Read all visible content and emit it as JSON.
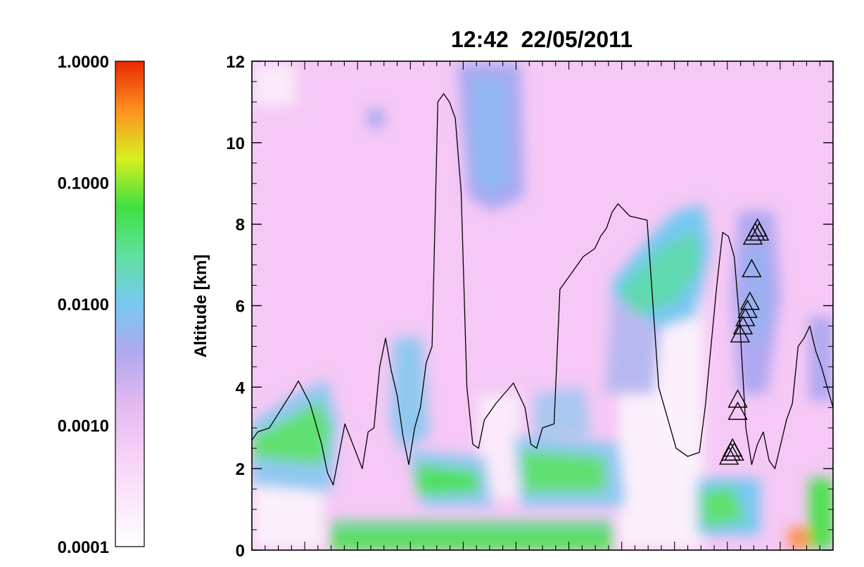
{
  "chart_data": {
    "type": "heatmap",
    "title": "12:42  22/05/2011",
    "ylabel": "Altitude [km]",
    "xlabel": "",
    "ylim": [
      0,
      12
    ],
    "yticks": [
      0,
      2,
      4,
      6,
      8,
      10,
      12
    ],
    "y_tick_labels": [
      "0",
      "2",
      "4",
      "6",
      "8",
      "10",
      "12"
    ],
    "x_tick_count": 44,
    "colorbar": {
      "scale": "log",
      "range": [
        0.0001,
        1.0
      ],
      "ticks": [
        0.0001,
        0.001,
        0.01,
        0.1,
        1.0
      ],
      "tick_labels": [
        "0.0001",
        "0.0010",
        "0.0100",
        "0.1000",
        "1.0000"
      ],
      "colors": [
        "#ffffff",
        "#f0c8f0",
        "#b0a8f0",
        "#78c8f0",
        "#50e060",
        "#d8f020",
        "#ff9020",
        "#e82800"
      ]
    },
    "colors": {
      "background": "#f5c8f5",
      "boundary_line": "#000000"
    },
    "series": [
      {
        "type": "line",
        "x": [
          0,
          0.01,
          0.03,
          0.07,
          0.08,
          0.1,
          0.12,
          0.13,
          0.14,
          0.16,
          0.19,
          0.2,
          0.21,
          0.22,
          0.23,
          0.24,
          0.25,
          0.26,
          0.27,
          0.28,
          0.29,
          0.3,
          0.31,
          0.32,
          0.33,
          0.34,
          0.35,
          0.36,
          0.37,
          0.38,
          0.39,
          0.4,
          0.42,
          0.45,
          0.46,
          0.47,
          0.48,
          0.49,
          0.5,
          0.52,
          0.53,
          0.55,
          0.56,
          0.57,
          0.59,
          0.6,
          0.61,
          0.62,
          0.63,
          0.65,
          0.68,
          0.7,
          0.73,
          0.75,
          0.77,
          0.78,
          0.79,
          0.8,
          0.81,
          0.82,
          0.83,
          0.84,
          0.85,
          0.86,
          0.87,
          0.88,
          0.89,
          0.9,
          0.91,
          0.92,
          0.93,
          0.94,
          0.95,
          0.96,
          0.97,
          0.98,
          0.99,
          1.0
        ],
        "values": [
          2.7,
          2.9,
          3.0,
          3.9,
          4.15,
          3.6,
          2.6,
          1.9,
          1.6,
          3.1,
          2.0,
          2.9,
          3.0,
          4.5,
          5.2,
          4.4,
          3.8,
          2.8,
          2.1,
          3.0,
          3.5,
          4.6,
          5.0,
          11.0,
          11.2,
          11.0,
          10.6,
          8.8,
          4.0,
          2.6,
          2.5,
          3.2,
          3.6,
          4.1,
          3.8,
          3.5,
          2.6,
          2.5,
          3.0,
          3.1,
          6.4,
          6.8,
          7.0,
          7.2,
          7.4,
          7.7,
          7.9,
          8.3,
          8.5,
          8.2,
          8.1,
          4.0,
          2.5,
          2.3,
          2.4,
          3.5,
          5.0,
          6.5,
          7.8,
          7.7,
          7.2,
          5.5,
          3.0,
          2.1,
          2.6,
          2.9,
          2.2,
          2.0,
          2.6,
          3.2,
          3.6,
          5.0,
          5.2,
          5.5,
          4.9,
          4.5,
          4.0,
          3.5
        ]
      },
      {
        "type": "scatter",
        "marker": "triangle",
        "x": [
          0.821,
          0.824,
          0.827,
          0.83,
          0.836,
          0.836,
          0.84,
          0.845,
          0.849,
          0.853,
          0.857,
          0.86,
          0.862,
          0.866,
          0.87,
          0.873
        ],
        "values": [
          2.3,
          2.4,
          2.5,
          2.4,
          3.4,
          3.7,
          5.3,
          5.5,
          5.7,
          5.9,
          6.1,
          6.9,
          7.7,
          7.8,
          7.9,
          7.8
        ]
      }
    ]
  }
}
